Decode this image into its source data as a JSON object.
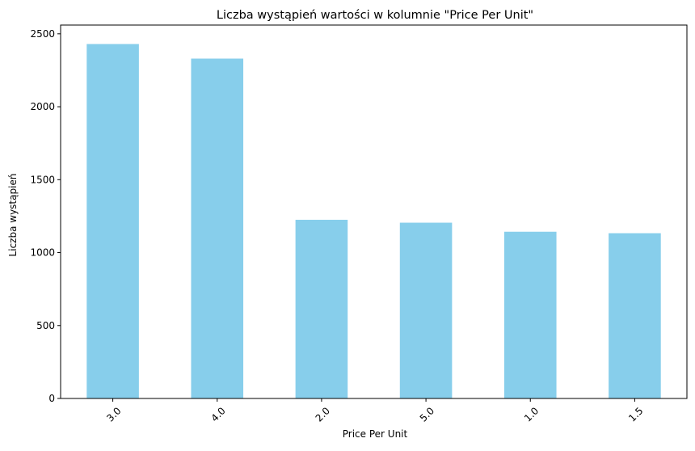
{
  "chart_data": {
    "type": "bar",
    "title": "Liczba wystąpień wartości w kolumnie \"Price Per Unit\"",
    "xlabel": "Price Per Unit",
    "ylabel": "Liczba wystąpień",
    "categories": [
      "3.0",
      "4.0",
      "2.0",
      "5.0",
      "1.0",
      "1.5"
    ],
    "values": [
      2430,
      2330,
      1225,
      1205,
      1143,
      1133
    ],
    "ylim": [
      0,
      2560
    ],
    "yticks": [
      "0",
      "500",
      "1000",
      "1500",
      "2000",
      "2500"
    ],
    "bar_color": "#87CEEB",
    "grid": false,
    "legend": "none"
  }
}
